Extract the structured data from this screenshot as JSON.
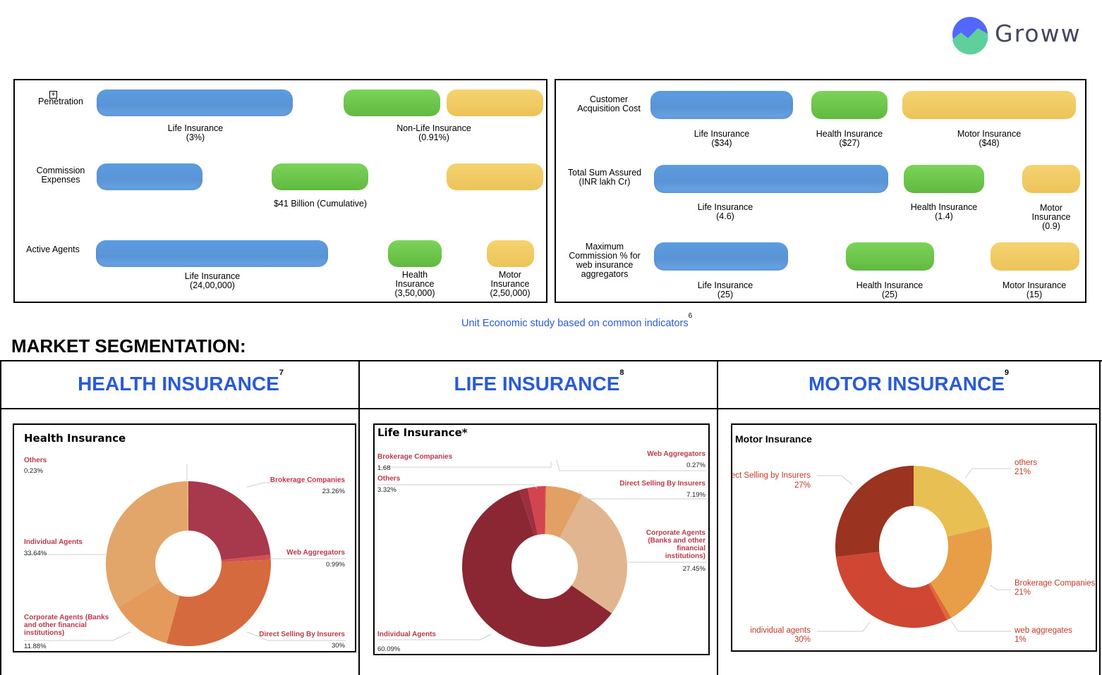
{
  "logo": {
    "brand": "Groww"
  },
  "unit_economics": {
    "left": {
      "penetration": {
        "label": "Penetration",
        "life": "Life Insurance\n(3%)",
        "nonlife": "Non-Life Insurance\n(0.91%)"
      },
      "commission": {
        "label": "Commission\nExpenses",
        "cumulative": "$41 Billion (Cumulative)"
      },
      "agents": {
        "label": "Active Agents",
        "life": "Life Insurance\n(24,00,000)",
        "health": "Health\nInsurance\n(3,50,000)",
        "motor": "Motor\nInsurance\n(2,50,000)"
      }
    },
    "right": {
      "cac": {
        "label": "Customer\nAcquisition Cost",
        "life": "Life Insurance\n($34)",
        "health": "Health Insurance\n($27)",
        "motor": "Motor Insurance\n($48)"
      },
      "sum_assured": {
        "label": "Total Sum Assured\n(INR lakh Cr)",
        "life": "Life Insurance\n(4.6)",
        "health": "Health Insurance\n(1.4)",
        "motor": "Motor\nInsurance\n(0.9)"
      },
      "web_commission": {
        "label": "Maximum\nCommission % for\nweb insurance\naggregators",
        "life": "Life Insurance\n(25)",
        "health": "Health Insurance\n(25)",
        "motor": "Motor Insurance\n(15)"
      }
    },
    "caption": "Unit Economic study based on common indicators",
    "caption_ref": "6"
  },
  "section_title": "MARKET SEGMENTATION:",
  "segments": [
    {
      "heading": "HEALTH INSURANCE",
      "ref": "7"
    },
    {
      "heading": "LIFE INSURANCE",
      "ref": "8"
    },
    {
      "heading": "MOTOR INSURANCE",
      "ref": "9"
    }
  ],
  "chart_data": [
    {
      "type": "pie",
      "title": "Health Insurance",
      "categories": [
        "Brokerage Companies",
        "Web Aggregators",
        "Direct Selling By Insurers",
        "Corporate Agents (Banks and other financial institutions)",
        "Individual Agents",
        "Others"
      ],
      "values": [
        23.26,
        0.99,
        30,
        11.88,
        33.64,
        0.23
      ],
      "value_labels": [
        "23.26%",
        "0.99%",
        "30%",
        "11.88%",
        "33.64%",
        "0.23%"
      ],
      "colors": [
        "#a8394c",
        "#d4504e",
        "#d46a3e",
        "#e49a5a",
        "#e2a66a",
        "#e8b27a"
      ]
    },
    {
      "type": "pie",
      "title": "Life Insurance*",
      "categories": [
        "Web Aggregators",
        "Direct Selling By Insurers",
        "Corporate Agents (Banks and other financial institutions)",
        "Individual Agents",
        "Brokerage Companies",
        "Others"
      ],
      "values": [
        0.27,
        7.19,
        27.45,
        60.09,
        1.68,
        3.32
      ],
      "value_labels": [
        "0.27%",
        "7.19%",
        "27.45%",
        "60.09%",
        "1.68",
        "3.32%"
      ],
      "colors": [
        "#d9564a",
        "#e3a064",
        "#e0b590",
        "#8a2733",
        "#9e2f3d",
        "#d44450"
      ]
    },
    {
      "type": "pie",
      "title": "Motor Insurance",
      "categories": [
        "others",
        "Brokerage Companies",
        "web aggregates",
        "individual agents",
        "Direct Selling by Insurers"
      ],
      "values": [
        21,
        21,
        1,
        30,
        27
      ],
      "value_labels": [
        "21%",
        "21%",
        "1%",
        "30%",
        "27%"
      ],
      "colors": [
        "#e8bf52",
        "#e89e46",
        "#e0683a",
        "#cf4733",
        "#9a3320"
      ]
    }
  ]
}
